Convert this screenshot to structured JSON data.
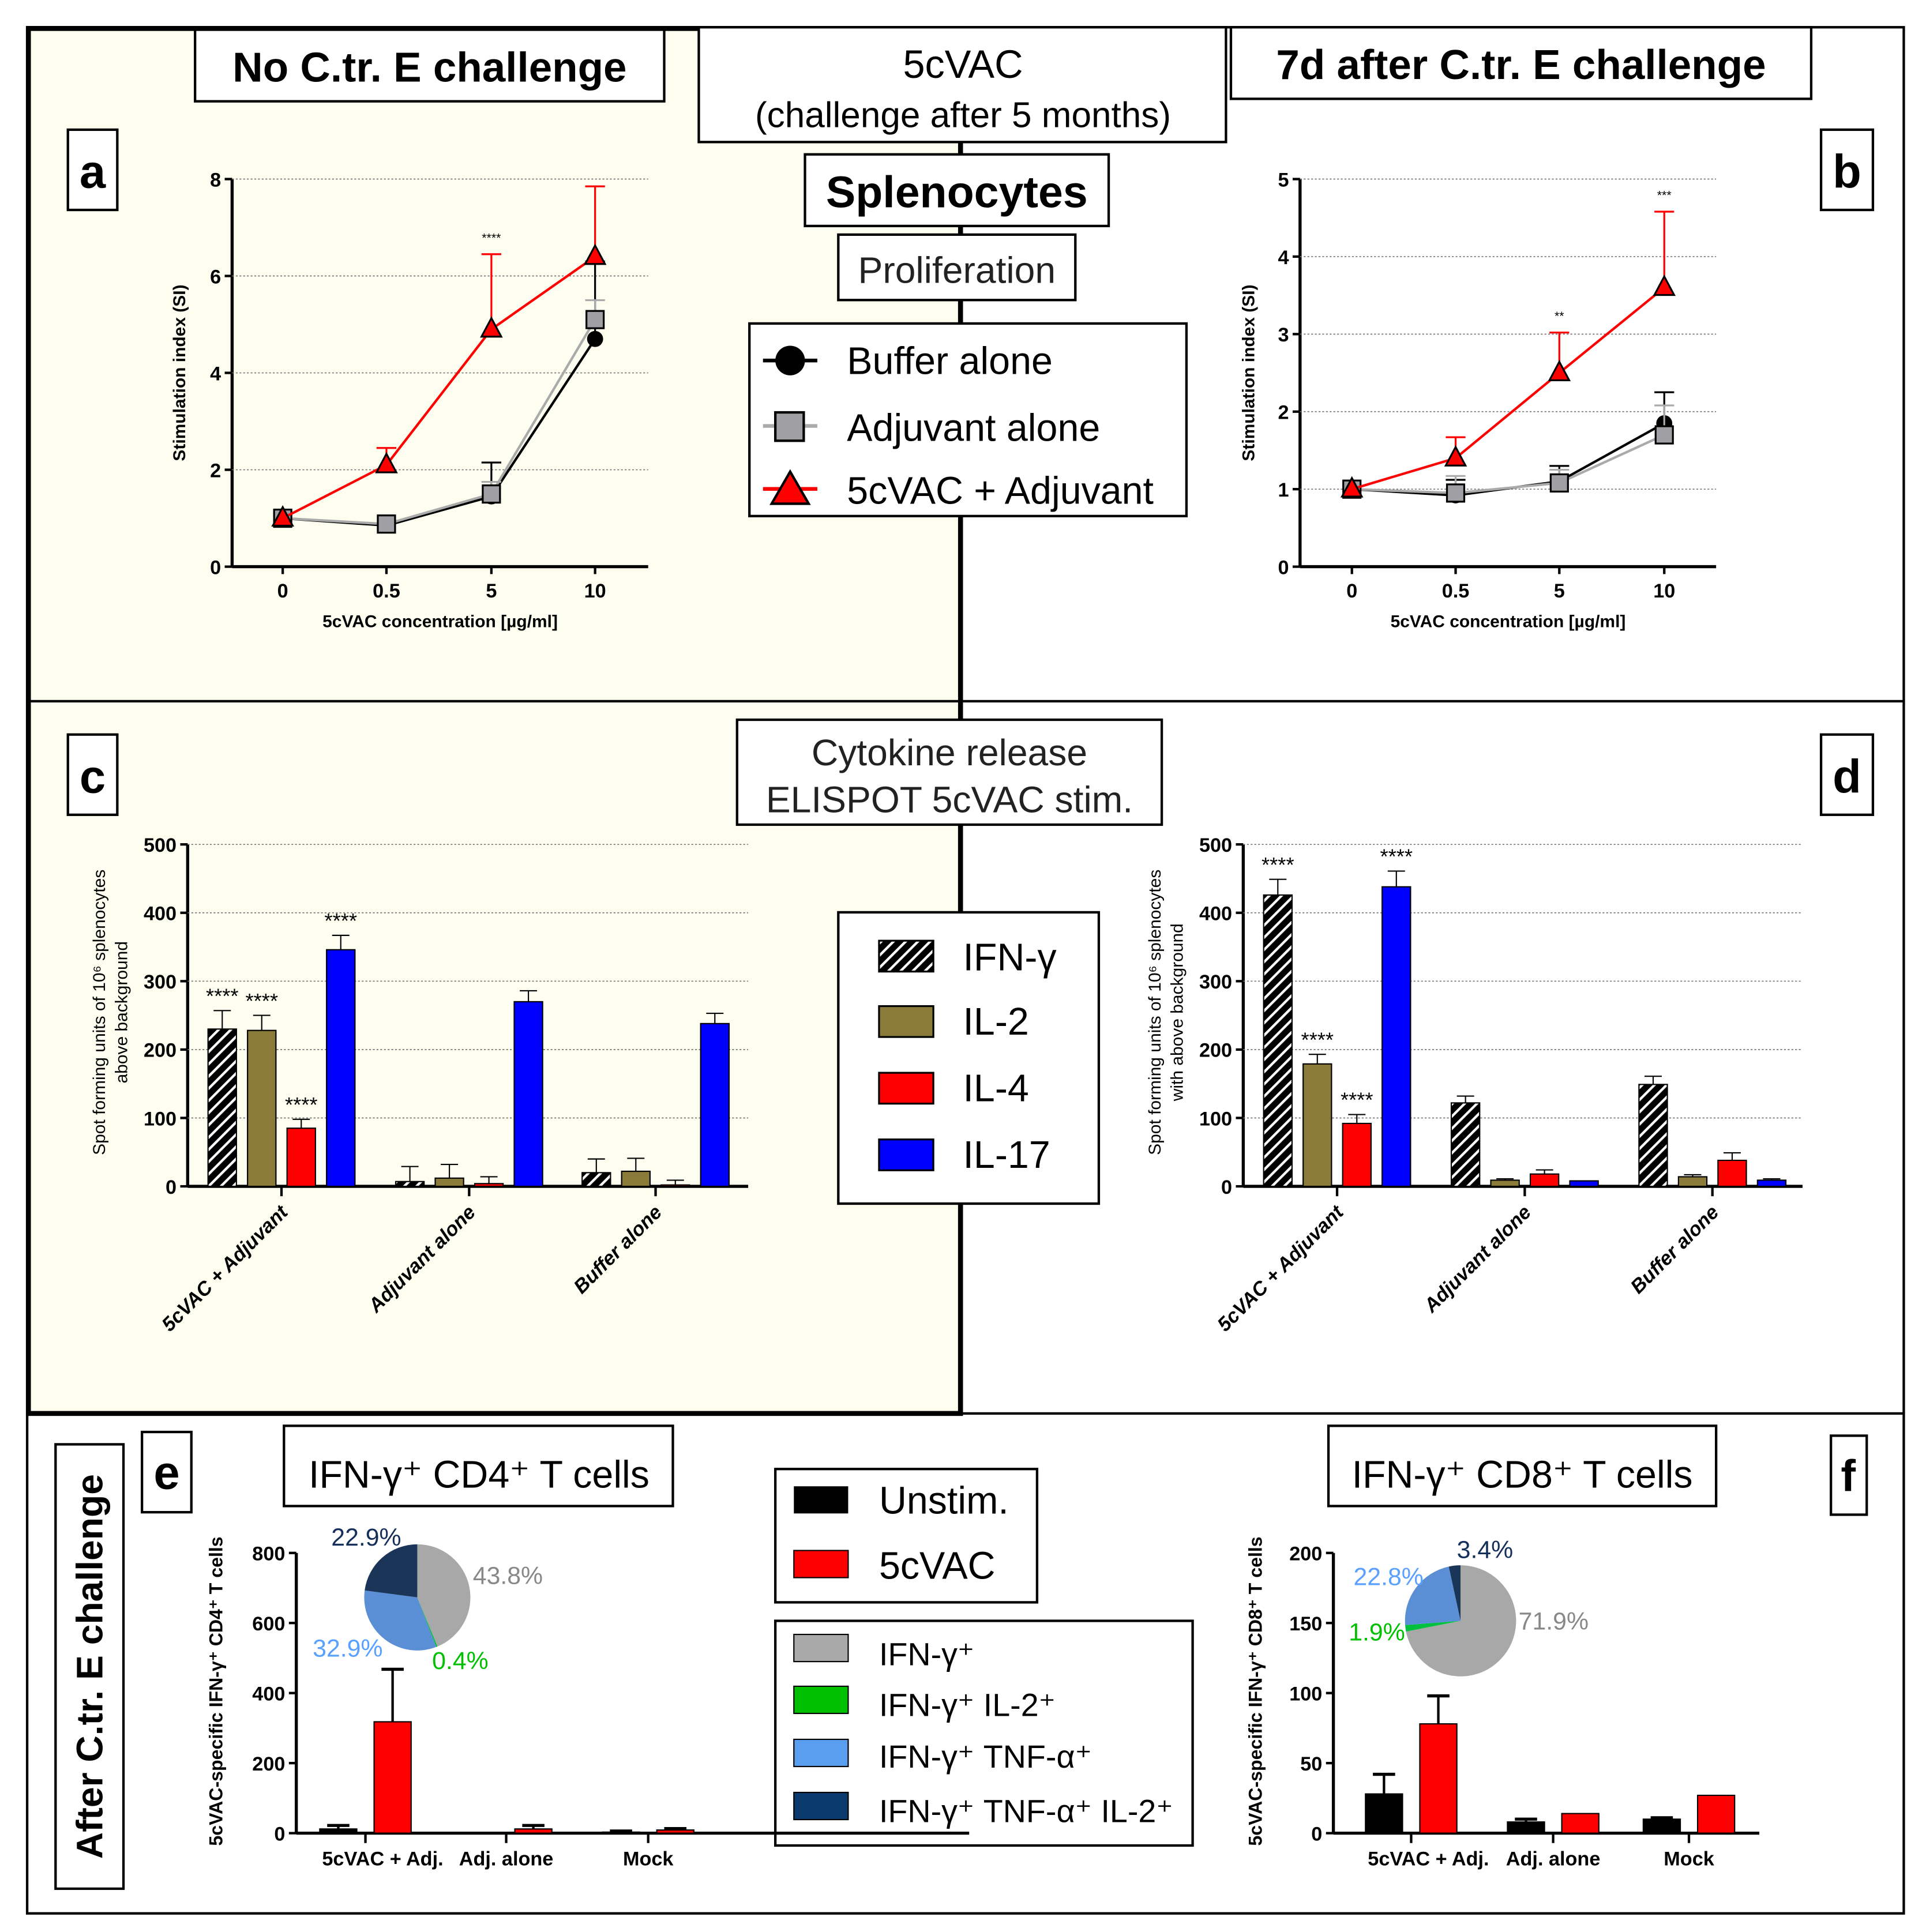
{
  "headers": {
    "no_challenge": "No C.tr. E challenge",
    "vaccine": "5cVAC",
    "vaccine_sub": "(challenge after 5 months)",
    "after_7d": "7d after C.tr. E challenge",
    "splenocytes": "Splenocytes",
    "proliferation": "Proliferation",
    "cytokine_line1": "Cytokine release",
    "cytokine_line2": "ELISPOT 5cVAC stim.",
    "after_challenge": "After C.tr. E challenge",
    "cd4_title": "IFN-γ⁺ CD4⁺ T cells",
    "cd8_title": "IFN-γ⁺ CD8⁺ T cells"
  },
  "panel_letters": {
    "a": "a",
    "b": "b",
    "c": "c",
    "d": "d",
    "e": "e",
    "f": "f"
  },
  "legends": {
    "proliferation": [
      "Buffer alone",
      "Adjuvant alone",
      "5cVAC + Adjuvant"
    ],
    "cytokines": [
      "IFN-γ",
      "IL-2",
      "IL-4",
      "IL-17"
    ],
    "stim": [
      "Unstim.",
      "5cVAC"
    ],
    "subsets": [
      "IFN-γ⁺",
      "IFN-γ⁺ IL-2⁺",
      "IFN-γ⁺ TNF-α⁺",
      "IFN-γ⁺ TNF-α⁺ IL-2⁺"
    ]
  },
  "colors": {
    "panel_bg": "#fefef0",
    "buffer": "#000000",
    "adjuvant": "#a0a0a4",
    "vaccine": "#ff0000",
    "il2": "#8b7b3a",
    "il17": "#0000ff",
    "ifng_only": "#a9a9a9",
    "ifng_il2": "#00c000",
    "ifng_tnf": "#5a8fd6",
    "ifng_tnf_il2": "#1a3558"
  },
  "chart_data": [
    {
      "id": "a",
      "type": "line",
      "xlabel": "5cVAC concentration [µg/ml]",
      "ylabel": "Stimulation index (SI)",
      "categories": [
        "0",
        "0.5",
        "5",
        "10"
      ],
      "ylim": [
        0,
        8
      ],
      "yticks": [
        0,
        2,
        4,
        6,
        8
      ],
      "grid": true,
      "series": [
        {
          "name": "Buffer alone",
          "values": [
            1,
            0.85,
            1.45,
            4.7
          ],
          "err_upper": [
            null,
            null,
            2.15,
            6.3
          ]
        },
        {
          "name": "Adjuvant alone",
          "values": [
            1,
            0.88,
            1.5,
            5.1
          ],
          "err_upper": [
            null,
            null,
            1.75,
            5.5
          ]
        },
        {
          "name": "5cVAC + Adjuvant",
          "values": [
            1,
            2.1,
            4.9,
            6.4
          ],
          "err_upper": [
            null,
            2.45,
            6.45,
            7.85
          ]
        }
      ],
      "annotations": [
        {
          "category": "5",
          "text": "****"
        }
      ]
    },
    {
      "id": "b",
      "type": "line",
      "xlabel": "5cVAC concentration [µg/ml]",
      "ylabel": "Stimulation index (SI)",
      "categories": [
        "0",
        "0.5",
        "5",
        "10"
      ],
      "ylim": [
        0,
        5
      ],
      "yticks": [
        0,
        1,
        2,
        3,
        4,
        5
      ],
      "grid": true,
      "series": [
        {
          "name": "Buffer alone",
          "values": [
            1,
            0.92,
            1.1,
            1.85
          ],
          "err_upper": [
            null,
            1.12,
            1.3,
            2.25
          ]
        },
        {
          "name": "Adjuvant alone",
          "values": [
            1,
            0.95,
            1.08,
            1.7
          ],
          "err_upper": [
            null,
            1.17,
            1.25,
            2.08
          ]
        },
        {
          "name": "5cVAC + Adjuvant",
          "values": [
            1,
            1.4,
            2.5,
            3.6
          ],
          "err_upper": [
            null,
            1.67,
            3.02,
            4.58
          ]
        }
      ],
      "annotations": [
        {
          "category": "5",
          "text": "**"
        },
        {
          "category": "10",
          "text": "***"
        }
      ]
    },
    {
      "id": "c",
      "type": "bar",
      "ylabel": "Spot forming units of 10⁶ splenocytes",
      "ylabel2": "above background",
      "categories": [
        "5cVAC + Adjuvant",
        "Adjuvant alone",
        "Buffer alone"
      ],
      "ylim": [
        0,
        500
      ],
      "yticks": [
        0,
        100,
        200,
        300,
        400,
        500
      ],
      "grid": true,
      "series": [
        {
          "name": "IFN-γ",
          "values": [
            230,
            7,
            20
          ],
          "err_upper": [
            257,
            29,
            40
          ],
          "stars": [
            "****",
            "",
            ""
          ]
        },
        {
          "name": "IL-2",
          "values": [
            228,
            12,
            22
          ],
          "err_upper": [
            250,
            32,
            41
          ],
          "stars": [
            "****",
            "",
            ""
          ]
        },
        {
          "name": "IL-4",
          "values": [
            85,
            4,
            2
          ],
          "err_upper": [
            98,
            14,
            9
          ],
          "stars": [
            "****",
            "",
            ""
          ]
        },
        {
          "name": "IL-17",
          "values": [
            346,
            270,
            238
          ],
          "err_upper": [
            367,
            286,
            253
          ],
          "stars": [
            "****",
            "",
            ""
          ]
        }
      ]
    },
    {
      "id": "d",
      "type": "bar",
      "ylabel": "Spot forming units of 10⁶ splenocytes",
      "ylabel2": "with above background",
      "categories": [
        "5cVAC + Adjuvant",
        "Adjuvant alone",
        "Buffer alone"
      ],
      "ylim": [
        0,
        500
      ],
      "yticks": [
        0,
        100,
        200,
        300,
        400,
        500
      ],
      "grid": true,
      "series": [
        {
          "name": "IFN-γ",
          "values": [
            426,
            122,
            149
          ],
          "err_upper": [
            449,
            132,
            161
          ],
          "stars": [
            "****",
            "",
            ""
          ]
        },
        {
          "name": "IL-2",
          "values": [
            179,
            9,
            14
          ],
          "err_upper": [
            193,
            11,
            17
          ],
          "stars": [
            "****",
            "",
            ""
          ]
        },
        {
          "name": "IL-4",
          "values": [
            92,
            18,
            38
          ],
          "err_upper": [
            105,
            24,
            49
          ],
          "stars": [
            "****",
            "",
            ""
          ]
        },
        {
          "name": "IL-17",
          "values": [
            438,
            8,
            9
          ],
          "err_upper": [
            461,
            8,
            11
          ],
          "stars": [
            "****",
            "",
            ""
          ]
        }
      ]
    },
    {
      "id": "e",
      "type": "bar",
      "ylabel": "5cVAC-specific IFN-γ⁺ CD4⁺ T cells",
      "categories": [
        "5cVAC + Adj.",
        "Adj. alone",
        "Mock"
      ],
      "ylim": [
        0,
        800
      ],
      "yticks": [
        0,
        200,
        400,
        600,
        800
      ],
      "grid": false,
      "series": [
        {
          "name": "Unstim.",
          "values": [
            12,
            2,
            3
          ],
          "err_upper": [
            22,
            2,
            6
          ]
        },
        {
          "name": "5cVAC",
          "values": [
            318,
            12,
            9
          ],
          "err_upper": [
            468,
            22,
            13
          ]
        }
      ]
    },
    {
      "id": "f",
      "type": "bar",
      "ylabel": "5cVAC-specific IFN-γ⁺ CD8⁺ T cells",
      "categories": [
        "5cVAC + Adj.",
        "Adj. alone",
        "Mock"
      ],
      "ylim": [
        0,
        200
      ],
      "yticks": [
        0,
        50,
        100,
        150,
        200
      ],
      "grid": false,
      "series": [
        {
          "name": "Unstim.",
          "values": [
            28,
            8,
            10
          ],
          "err_upper": [
            42,
            10,
            11
          ]
        },
        {
          "name": "5cVAC",
          "values": [
            78,
            14,
            27
          ],
          "err_upper": [
            98,
            14,
            27
          ]
        }
      ]
    },
    {
      "id": "e-pie",
      "type": "pie",
      "labels": [
        "IFN-γ⁺",
        "IFN-γ⁺ IL-2⁺",
        "IFN-γ⁺ TNF-α⁺",
        "IFN-γ⁺ TNF-α⁺ IL-2⁺"
      ],
      "values": [
        43.8,
        0.4,
        32.9,
        22.9
      ],
      "value_labels": [
        "43.8%",
        "0.4%",
        "32.9%",
        "22.9%"
      ]
    },
    {
      "id": "f-pie",
      "type": "pie",
      "labels": [
        "IFN-γ⁺",
        "IFN-γ⁺ IL-2⁺",
        "IFN-γ⁺ TNF-α⁺",
        "IFN-γ⁺ TNF-α⁺ IL-2⁺"
      ],
      "values": [
        71.9,
        1.9,
        22.8,
        3.4
      ],
      "value_labels": [
        "71.9%",
        "1.9%",
        "22.8%",
        "3.4%"
      ]
    }
  ]
}
